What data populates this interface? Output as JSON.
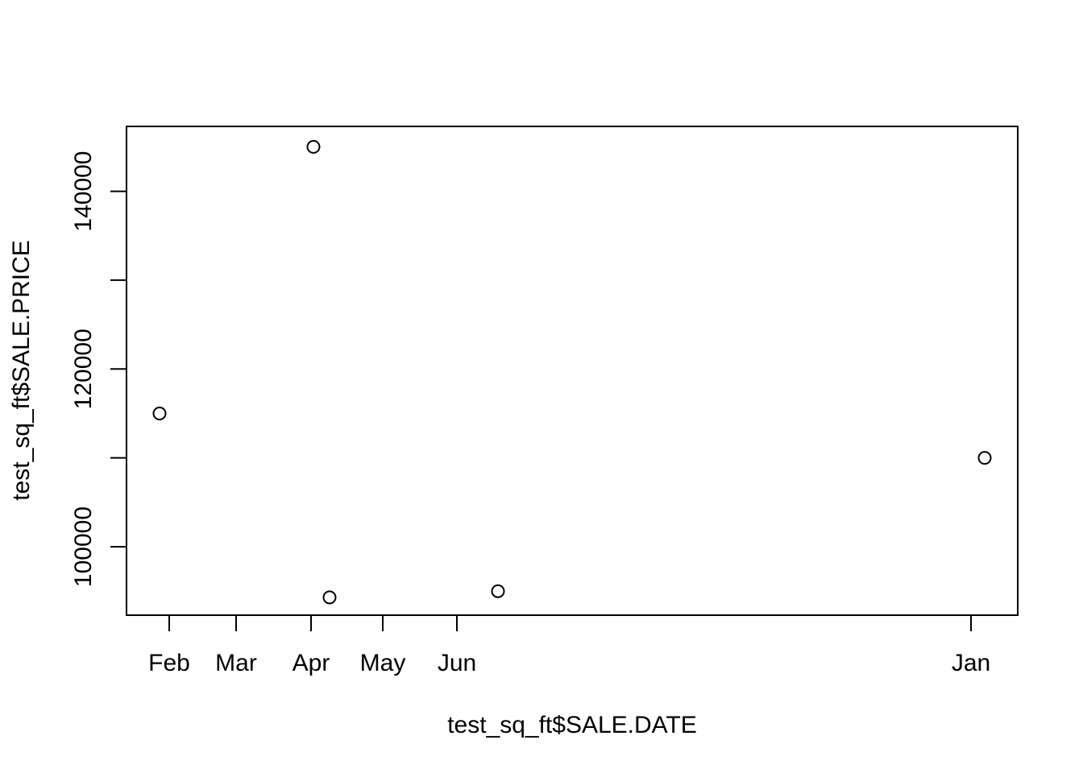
{
  "chart_data": {
    "type": "scatter",
    "xlabel": "test_sq_ft$SALE.DATE",
    "ylabel": "test_sq_ft$SALE.PRICE",
    "x_tick_labels": [
      "Feb",
      "Mar",
      "Apr",
      "May",
      "Jun",
      "Jan"
    ],
    "y_tick_values": [
      100000,
      110000,
      120000,
      130000,
      140000
    ],
    "y_tick_labels": [
      "100000",
      "",
      "120000",
      "",
      "140000"
    ],
    "ylim": [
      92300,
      147300
    ],
    "points": [
      {
        "x": "Jan 27",
        "y": 115000
      },
      {
        "x": "Apr 01",
        "y": 145000
      },
      {
        "x": "Apr 08",
        "y": 94300
      },
      {
        "x": "Jun 18",
        "y": 95000
      },
      {
        "x": "Jan 07 (next year)",
        "y": 110000
      }
    ],
    "marker": "open circle",
    "grid": false,
    "colors": {
      "points": "#000000",
      "axes": "#000000",
      "background": "#ffffff"
    }
  }
}
